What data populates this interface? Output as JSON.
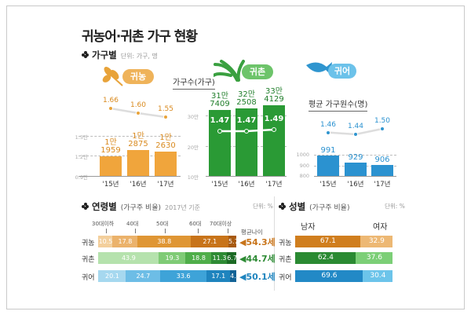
{
  "title": "귀농어·귀촌 가구 현황",
  "household_section": {
    "label": "가구별",
    "unit": "단위: 가구, 명",
    "households_caption": "가구수(가구)",
    "avg_members_caption": "평균 가구원수(명)"
  },
  "age_section": {
    "label": "연령별",
    "sub": "(가구주 비율)",
    "basis": "2017년 기준",
    "unit": "단위: %",
    "avg_label": "평균나이"
  },
  "gender_section": {
    "label": "성별",
    "sub": "(가구주 비율)",
    "unit": "단위: %",
    "male": "남자",
    "female": "여자"
  },
  "colors": {
    "farm": "#e8a33a",
    "rural": "#2e9b3a",
    "fish": "#2f95cf"
  },
  "chart_data": [
    {
      "type": "bar",
      "title": "귀농",
      "icon": "wheat-icon",
      "categories": [
        "'15년",
        "'16년",
        "'17년"
      ],
      "values": [
        11959,
        12875,
        12630
      ],
      "value_labels": [
        "1만\n1959",
        "1만\n2875",
        "1만\n2630"
      ],
      "ylim": [
        9000,
        15000
      ],
      "yticks": [
        "0.9만",
        "1.2만",
        "1.5만"
      ],
      "line": {
        "values": [
          1.66,
          1.6,
          1.55
        ],
        "labels": [
          "1.66",
          "1.60",
          "1.55"
        ]
      }
    },
    {
      "type": "bar",
      "title": "귀촌",
      "icon": "grass-icon",
      "categories": [
        "'15년",
        "'16년",
        "'17년"
      ],
      "values": [
        317409,
        322508,
        334129
      ],
      "value_labels": [
        "31만\n7409",
        "32만\n2508",
        "33만\n4129"
      ],
      "ylim": [
        100000,
        300000
      ],
      "yticks": [
        "10만",
        "20만",
        "30만"
      ],
      "line": {
        "values": [
          1.47,
          1.47,
          1.49
        ],
        "labels": [
          "1.47",
          "1.47",
          "1.49"
        ]
      }
    },
    {
      "type": "bar",
      "title": "귀어",
      "icon": "fish-icon",
      "categories": [
        "'15년",
        "'16년",
        "'17년"
      ],
      "values": [
        991,
        929,
        906
      ],
      "value_labels": [
        "991",
        "929",
        "906"
      ],
      "ylim": [
        800,
        1000
      ],
      "yticks": [
        "800",
        "900",
        "1000"
      ],
      "line": {
        "values": [
          1.46,
          1.44,
          1.5
        ],
        "labels": [
          "1.46",
          "1.44",
          "1.50"
        ]
      }
    },
    {
      "type": "bar",
      "stacked": true,
      "title": "연령별",
      "groups": [
        "30대이하",
        "40대",
        "50대",
        "60대",
        "70대이상"
      ],
      "rows": [
        {
          "label": "귀농",
          "values": [
            10.5,
            17.8,
            38.8,
            27.1,
            5.7
          ],
          "labels": [
            "10.5",
            "17.8",
            "38.8",
            "27.1",
            "5.7"
          ],
          "avg_age": "◀54.3세",
          "colors": [
            "#f3cf9c",
            "#ebb26b",
            "#df9634",
            "#c8741a",
            "#a85a10"
          ]
        },
        {
          "label": "귀촌",
          "values": [
            43.9,
            19.3,
            18.8,
            11.3,
            6.7
          ],
          "labels": [
            "43.9",
            "19.3",
            "18.8",
            "11.3",
            "6.7"
          ],
          "avg_age": "◀44.7세",
          "colors": [
            "#b5e2ad",
            "#7fcb76",
            "#4fae4a",
            "#2e8b35",
            "#1c6a25"
          ]
        },
        {
          "label": "귀어",
          "values": [
            20.1,
            24.7,
            33.6,
            17.1,
            4.5
          ],
          "labels": [
            "20.1",
            "24.7",
            "33.6",
            "17.1",
            "4.5"
          ],
          "avg_age": "◀50.1세",
          "colors": [
            "#a6d8ef",
            "#6dbde6",
            "#3ea3d8",
            "#1f84be",
            "#136396"
          ]
        }
      ]
    },
    {
      "type": "bar",
      "stacked": true,
      "title": "성별",
      "groups": [
        "남자",
        "여자"
      ],
      "rows": [
        {
          "label": "귀농",
          "values": [
            67.1,
            32.9
          ],
          "labels": [
            "67.1",
            "32.9"
          ],
          "colors": [
            "#d07e1e",
            "#edb874"
          ]
        },
        {
          "label": "귀촌",
          "values": [
            62.4,
            37.6
          ],
          "labels": [
            "62.4",
            "37.6"
          ],
          "colors": [
            "#2a8a32",
            "#7ccf77"
          ]
        },
        {
          "label": "귀어",
          "values": [
            69.6,
            30.4
          ],
          "labels": [
            "69.6",
            "30.4"
          ],
          "colors": [
            "#2289c6",
            "#6cc4ea"
          ]
        }
      ]
    }
  ]
}
